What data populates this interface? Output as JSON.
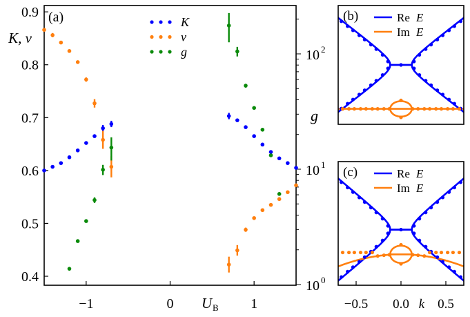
{
  "colors": {
    "K": "#0000ff",
    "v": "#ff7f0e",
    "g": "#0a8a0a",
    "re": "#0000ff",
    "im": "#ff7f0e"
  },
  "chart_data": [
    {
      "type": "scatter",
      "panel_label": "(a)",
      "xlabel": "U",
      "xlabel_sub": "B",
      "ylabel": "K, v",
      "ylabel_right": "g",
      "xlim": [
        -1.5,
        1.5
      ],
      "ylim": [
        0.383,
        0.912
      ],
      "ylim_right_log10": [
        0,
        2.45
      ],
      "xticks": [
        {
          "v": -1,
          "label": "−1"
        },
        {
          "v": 0,
          "label": "0"
        },
        {
          "v": 1,
          "label": "1"
        }
      ],
      "yticks": [
        {
          "v": 0.4,
          "label": "0.4"
        },
        {
          "v": 0.5,
          "label": "0.5"
        },
        {
          "v": 0.6,
          "label": "0.6"
        },
        {
          "v": 0.7,
          "label": "0.7"
        },
        {
          "v": 0.8,
          "label": "0.8"
        },
        {
          "v": 0.9,
          "label": "0.9"
        }
      ],
      "yticks_right": [
        {
          "v": 1,
          "label": "10",
          "exp": "0"
        },
        {
          "v": 10,
          "label": "10",
          "exp": "1"
        },
        {
          "v": 100,
          "label": "10",
          "exp": "2"
        }
      ],
      "legend": [
        {
          "key": "K",
          "label": "K"
        },
        {
          "key": "v",
          "label": "v"
        },
        {
          "key": "g",
          "label": "g"
        }
      ],
      "series": [
        {
          "name": "K",
          "axis": "left",
          "x": [
            -1.5,
            -1.4,
            -1.3,
            -1.2,
            -1.1,
            -1.0,
            -0.9,
            -0.8,
            -0.7,
            0.7,
            0.8,
            0.9,
            1.0,
            1.1,
            1.2,
            1.3,
            1.4,
            1.5
          ],
          "y": [
            0.6,
            0.607,
            0.614,
            0.625,
            0.638,
            0.652,
            0.665,
            0.68,
            0.688,
            0.703,
            0.695,
            0.682,
            0.665,
            0.649,
            0.635,
            0.623,
            0.614,
            0.605
          ],
          "err": [
            0,
            0,
            0,
            0,
            0,
            0,
            0,
            0.006,
            0.006,
            0.006,
            0,
            0,
            0,
            0,
            0,
            0,
            0,
            0
          ]
        },
        {
          "name": "v",
          "axis": "left",
          "x": [
            -1.5,
            -1.4,
            -1.3,
            -1.2,
            -1.1,
            -1.0,
            -0.9,
            -0.8,
            -0.7,
            0.7,
            0.8,
            0.9,
            1.0,
            1.1,
            1.2,
            1.3,
            1.4,
            1.5
          ],
          "y": [
            0.866,
            0.856,
            0.842,
            0.826,
            0.805,
            0.772,
            0.727,
            0.658,
            0.607,
            0.422,
            0.449,
            0.488,
            0.51,
            0.525,
            0.535,
            0.546,
            0.559,
            0.572
          ],
          "err": [
            0,
            0.004,
            0,
            0,
            0,
            0.004,
            0.008,
            0.017,
            0.02,
            0.015,
            0.01,
            0.004,
            0,
            0,
            0,
            0,
            0,
            0
          ]
        },
        {
          "name": "g",
          "axis": "right",
          "x": [
            -1.2,
            -1.1,
            -1.0,
            -0.9,
            -0.8,
            -0.7,
            0.7,
            0.8,
            0.9,
            1.0,
            1.1,
            1.2,
            1.3
          ],
          "y": [
            1.37,
            2.38,
            3.55,
            5.4,
            9.9,
            15.4,
            176,
            105,
            53,
            34,
            22,
            13.2,
            6.1
          ],
          "err": [
            0,
            0,
            0,
            0.3,
            1.0,
            3.5,
            50,
            10,
            2,
            0,
            0,
            0,
            0
          ]
        }
      ]
    },
    {
      "type": "line",
      "panel_label": "(b)",
      "xlim": [
        -0.7,
        0.7
      ],
      "ylim": [
        -1,
        1
      ],
      "legend": [
        {
          "key": "re",
          "label": "Re",
          "var": "E"
        },
        {
          "key": "im",
          "label": "Im",
          "var": "E"
        }
      ],
      "model": {
        "k0": 0.12,
        "re_slope": 1.15,
        "re_offset": 0,
        "im_base": -0.74,
        "im_curv": 0,
        "loop_center": -0.74,
        "loop_height": 0.13
      },
      "dots_k": [
        -0.65,
        -0.58,
        -0.52,
        -0.45,
        -0.39,
        -0.32,
        -0.26,
        -0.19,
        -0.13,
        0,
        0.13,
        0.19,
        0.26,
        0.32,
        0.39,
        0.45,
        0.52,
        0.58,
        0.65
      ],
      "im_dots_flat": false
    },
    {
      "type": "line",
      "panel_label": "(c)",
      "xlabel": "k",
      "xlim": [
        -0.7,
        0.7
      ],
      "ylim": [
        -1,
        1
      ],
      "xticks": [
        {
          "v": -0.5,
          "label": "−0.5"
        },
        {
          "v": 0,
          "label": "0.0"
        },
        {
          "v": 0.5,
          "label": "0.5"
        }
      ],
      "legend": [
        {
          "key": "re",
          "label": "Re",
          "var": "E"
        },
        {
          "key": "im",
          "label": "Im",
          "var": "E"
        }
      ],
      "model": {
        "k0": 0.12,
        "re_slope": 1.2,
        "re_offset": -0.1,
        "im_base": -0.5,
        "im_curv": -0.4,
        "loop_center": -0.5,
        "loop_height": 0.14,
        "im_dot_level": -0.47
      },
      "dots_k": [
        -0.65,
        -0.58,
        -0.52,
        -0.45,
        -0.39,
        -0.32,
        -0.26,
        -0.19,
        -0.13,
        0,
        0.13,
        0.19,
        0.26,
        0.32,
        0.39,
        0.45,
        0.52,
        0.58,
        0.65
      ],
      "im_dots_flat": true
    }
  ]
}
